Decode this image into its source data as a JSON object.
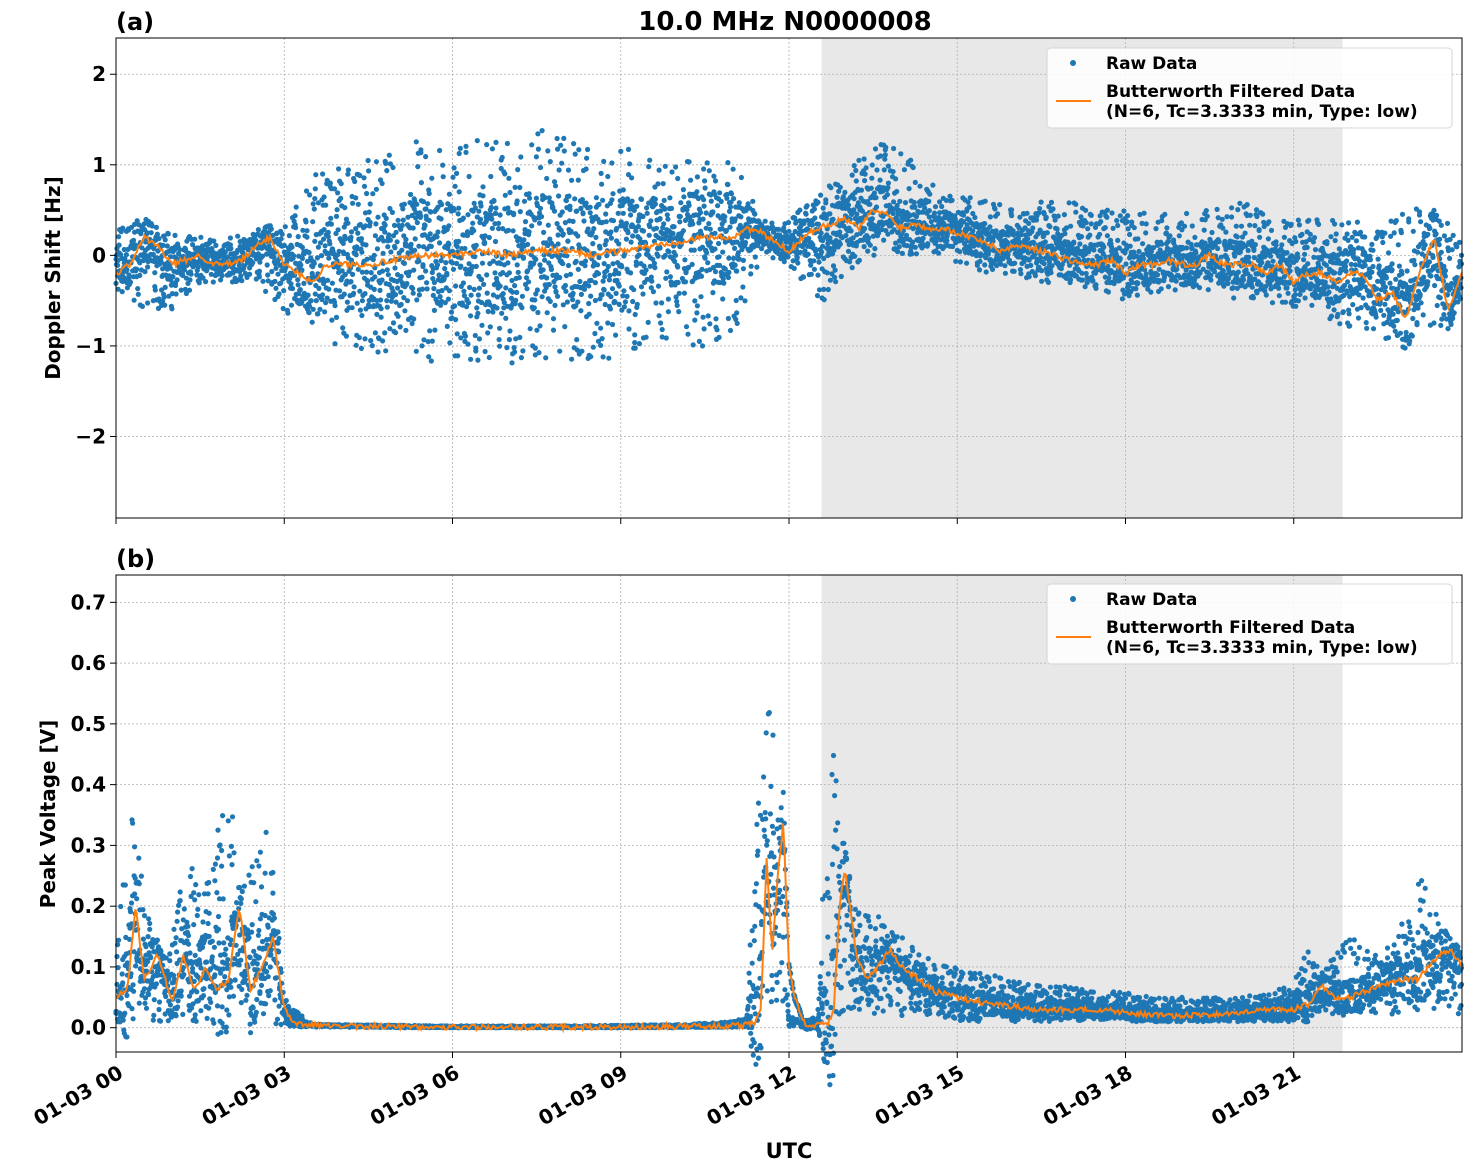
{
  "figure": {
    "title": "10.0 MHz N0000008",
    "xlabel": "UTC",
    "x_tick_labels": [
      "01-03 00",
      "01-03 03",
      "01-03 06",
      "01-03 09",
      "01-03 12",
      "01-03 15",
      "01-03 18",
      "01-03 21"
    ],
    "colors": {
      "raw": "#1f77b4",
      "filtered": "#ff7f0e",
      "shade": "#e8e8e8",
      "grid": "#b0b0b0"
    }
  },
  "chart_data": [
    {
      "type": "scatter",
      "panel_label": "(a)",
      "ylabel": "Doppler Shift [Hz]",
      "xlim_hours": [
        0,
        24
      ],
      "ylim": [
        -2.9,
        2.4
      ],
      "yticks": [
        -2,
        -1,
        0,
        1,
        2
      ],
      "ytick_labels": [
        "−2",
        "−1",
        "0",
        "1",
        "2"
      ],
      "shaded_interval_hours": [
        12.58,
        21.87
      ],
      "grid": true,
      "legend": {
        "placement": "top-right",
        "entries": [
          "Raw Data",
          "Butterworth Filtered Data",
          "(N=6, Tc=3.3333 min, Type: low)"
        ]
      },
      "series": [
        {
          "name": "Raw Data",
          "style": "points",
          "x_hours": [
            0,
            0.5,
            1,
            1.5,
            2,
            2.5,
            3,
            3.5,
            4,
            4.5,
            5,
            5.5,
            6,
            6.5,
            7,
            7.5,
            8,
            8.5,
            9,
            9.5,
            10,
            10.5,
            11,
            11.5,
            12,
            12.5,
            13,
            13.5,
            14,
            14.5,
            15,
            15.5,
            16,
            16.5,
            17,
            17.5,
            18,
            18.5,
            19,
            19.5,
            20,
            20.5,
            21,
            21.5,
            22,
            22.5,
            23,
            23.5,
            24
          ],
          "y_upper": [
            0.35,
            0.4,
            0.25,
            0.2,
            0.2,
            0.3,
            0.3,
            0.9,
            1.0,
            1.1,
            1.2,
            1.3,
            1.2,
            1.3,
            1.3,
            1.4,
            1.3,
            1.2,
            1.2,
            1.1,
            1.0,
            1.1,
            1.1,
            0.4,
            0.4,
            0.7,
            0.9,
            1.3,
            1.2,
            0.8,
            0.7,
            0.6,
            0.6,
            0.6,
            0.6,
            0.5,
            0.5,
            0.5,
            0.5,
            0.5,
            0.6,
            0.5,
            0.4,
            0.4,
            0.4,
            0.3,
            0.6,
            0.5,
            0.3
          ],
          "y_lower": [
            -0.4,
            -0.6,
            -0.6,
            -0.3,
            -0.3,
            -0.3,
            -0.6,
            -0.9,
            -1.0,
            -1.1,
            -1.2,
            -1.2,
            -1.1,
            -1.2,
            -1.2,
            -1.1,
            -1.2,
            -1.2,
            -1.1,
            -1.0,
            -1.0,
            -1.0,
            -0.9,
            0.0,
            -0.1,
            -0.6,
            -0.2,
            0.0,
            0.0,
            0.0,
            -0.1,
            -0.2,
            -0.2,
            -0.3,
            -0.3,
            -0.4,
            -0.5,
            -0.4,
            -0.4,
            -0.4,
            -0.5,
            -0.5,
            -0.6,
            -0.7,
            -0.8,
            -0.9,
            -1.0,
            -0.9,
            -0.5
          ]
        },
        {
          "name": "Butterworth Filtered Data",
          "style": "line",
          "x_hours": [
            0,
            0.25,
            0.5,
            0.75,
            1,
            1.25,
            1.5,
            1.75,
            2,
            2.25,
            2.5,
            2.75,
            3,
            3.25,
            3.5,
            3.75,
            4,
            4.5,
            5,
            5.5,
            6,
            6.5,
            7,
            7.5,
            8,
            8.5,
            9,
            9.5,
            10,
            10.5,
            11,
            11.25,
            11.5,
            11.75,
            12,
            12.25,
            12.5,
            12.75,
            13,
            13.25,
            13.5,
            13.75,
            14,
            14.25,
            14.5,
            14.75,
            15,
            15.25,
            15.5,
            15.75,
            16,
            16.25,
            16.5,
            16.75,
            17,
            17.25,
            17.5,
            17.75,
            18,
            18.25,
            18.5,
            18.75,
            19,
            19.25,
            19.5,
            19.75,
            20,
            20.25,
            20.5,
            20.75,
            21,
            21.25,
            21.5,
            21.75,
            22,
            22.25,
            22.5,
            22.75,
            23,
            23.25,
            23.5,
            23.75,
            24
          ],
          "y": [
            -0.2,
            -0.1,
            0.2,
            0.1,
            -0.1,
            -0.05,
            0.0,
            -0.1,
            -0.1,
            -0.05,
            0.1,
            0.2,
            -0.1,
            -0.2,
            -0.3,
            -0.1,
            -0.1,
            -0.1,
            -0.05,
            0.0,
            0.0,
            0.05,
            0.0,
            0.05,
            0.05,
            0.0,
            0.05,
            0.1,
            0.15,
            0.2,
            0.2,
            0.3,
            0.25,
            0.15,
            0.05,
            0.2,
            0.3,
            0.35,
            0.4,
            0.3,
            0.5,
            0.45,
            0.3,
            0.35,
            0.3,
            0.3,
            0.25,
            0.2,
            0.15,
            0.05,
            0.1,
            0.1,
            0.05,
            0.0,
            -0.05,
            -0.1,
            -0.1,
            -0.05,
            -0.2,
            -0.1,
            -0.1,
            -0.05,
            -0.1,
            -0.1,
            0.0,
            -0.1,
            -0.1,
            -0.1,
            -0.2,
            -0.1,
            -0.3,
            -0.2,
            -0.2,
            -0.3,
            -0.2,
            -0.2,
            -0.5,
            -0.4,
            -0.7,
            -0.2,
            0.2,
            -0.6,
            -0.2
          ]
        }
      ]
    },
    {
      "type": "scatter",
      "panel_label": "(b)",
      "ylabel": "Peak Voltage [V]",
      "xlim_hours": [
        0,
        24
      ],
      "ylim": [
        -0.04,
        0.745
      ],
      "yticks": [
        0.0,
        0.1,
        0.2,
        0.3,
        0.4,
        0.5,
        0.6,
        0.7
      ],
      "ytick_labels": [
        "0.0",
        "0.1",
        "0.2",
        "0.3",
        "0.4",
        "0.5",
        "0.6",
        "0.7"
      ],
      "shaded_interval_hours": [
        12.58,
        21.87
      ],
      "grid": true,
      "legend": {
        "placement": "top-right",
        "entries": [
          "Raw Data",
          "Butterworth Filtered Data",
          "(N=6, Tc=3.3333 min, Type: low)"
        ]
      },
      "series": [
        {
          "name": "Raw Data",
          "style": "points",
          "x_hours": [
            0,
            0.25,
            0.5,
            0.75,
            1,
            1.25,
            1.5,
            1.75,
            2,
            2.25,
            2.5,
            2.75,
            3,
            3.5,
            4,
            5,
            6,
            7,
            8,
            9,
            10,
            11,
            11.25,
            11.5,
            11.75,
            12,
            12.25,
            12.5,
            12.75,
            13,
            13.25,
            13.5,
            13.75,
            14,
            14.5,
            15,
            15.5,
            16,
            16.5,
            17,
            17.5,
            18,
            18.5,
            19,
            19.5,
            20,
            20.5,
            21,
            21.25,
            21.5,
            21.75,
            22,
            22.5,
            23,
            23.25,
            23.5,
            23.75,
            24
          ],
          "y_upper": [
            0.15,
            0.38,
            0.22,
            0.12,
            0.15,
            0.28,
            0.25,
            0.3,
            0.4,
            0.3,
            0.3,
            0.35,
            0.05,
            0.006,
            0.005,
            0.004,
            0.003,
            0.003,
            0.003,
            0.004,
            0.005,
            0.01,
            0.02,
            0.55,
            0.5,
            0.02,
            0.01,
            0.02,
            0.5,
            0.25,
            0.2,
            0.2,
            0.16,
            0.15,
            0.12,
            0.1,
            0.09,
            0.08,
            0.07,
            0.07,
            0.06,
            0.06,
            0.05,
            0.05,
            0.05,
            0.05,
            0.06,
            0.07,
            0.15,
            0.1,
            0.12,
            0.15,
            0.12,
            0.18,
            0.25,
            0.2,
            0.15,
            0.1
          ],
          "y_lower": [
            0.01,
            0.01,
            0.01,
            0.01,
            0.01,
            0.01,
            0.01,
            0.02,
            0.02,
            0.02,
            0.02,
            0.01,
            0.001,
            0.001,
            0.001,
            0.0,
            0.0,
            0.0,
            0.0,
            0.0,
            0.0,
            0.001,
            0.01,
            0.05,
            0.05,
            0.0,
            0.0,
            0.0,
            0.02,
            0.02,
            0.02,
            0.02,
            0.02,
            0.02,
            0.02,
            0.01,
            0.01,
            0.01,
            0.01,
            0.01,
            0.01,
            0.01,
            0.01,
            0.01,
            0.01,
            0.01,
            0.01,
            0.01,
            0.02,
            0.02,
            0.02,
            0.02,
            0.02,
            0.02,
            0.03,
            0.03,
            0.02,
            0.02
          ]
        },
        {
          "name": "Butterworth Filtered Data",
          "style": "line",
          "x_hours": [
            0,
            0.2,
            0.35,
            0.5,
            0.75,
            1,
            1.2,
            1.4,
            1.6,
            1.8,
            2,
            2.2,
            2.4,
            2.6,
            2.8,
            3,
            3.2,
            3.5,
            4,
            5,
            6,
            7,
            8,
            9,
            10,
            11,
            11.2,
            11.4,
            11.5,
            11.6,
            11.7,
            11.8,
            11.9,
            12,
            12.1,
            12.3,
            12.5,
            12.7,
            12.8,
            12.9,
            13,
            13.2,
            13.4,
            13.6,
            13.8,
            14,
            14.3,
            14.6,
            15,
            15.5,
            16,
            16.5,
            17,
            17.5,
            18,
            18.5,
            19,
            19.5,
            20,
            20.5,
            21,
            21.3,
            21.5,
            21.7,
            22,
            22.3,
            22.6,
            22.9,
            23.2,
            23.4,
            23.6,
            23.8,
            24
          ],
          "y": [
            0.05,
            0.06,
            0.2,
            0.08,
            0.12,
            0.04,
            0.12,
            0.06,
            0.1,
            0.06,
            0.08,
            0.2,
            0.06,
            0.1,
            0.15,
            0.03,
            0.008,
            0.004,
            0.003,
            0.002,
            0.001,
            0.001,
            0.001,
            0.001,
            0.002,
            0.003,
            0.004,
            0.01,
            0.03,
            0.28,
            0.12,
            0.25,
            0.34,
            0.1,
            0.05,
            0.0,
            0.005,
            0.008,
            0.03,
            0.2,
            0.26,
            0.12,
            0.08,
            0.1,
            0.13,
            0.1,
            0.08,
            0.06,
            0.05,
            0.04,
            0.035,
            0.03,
            0.03,
            0.03,
            0.025,
            0.02,
            0.02,
            0.02,
            0.025,
            0.03,
            0.03,
            0.04,
            0.07,
            0.05,
            0.05,
            0.06,
            0.07,
            0.08,
            0.08,
            0.1,
            0.12,
            0.13,
            0.1
          ]
        }
      ]
    }
  ]
}
